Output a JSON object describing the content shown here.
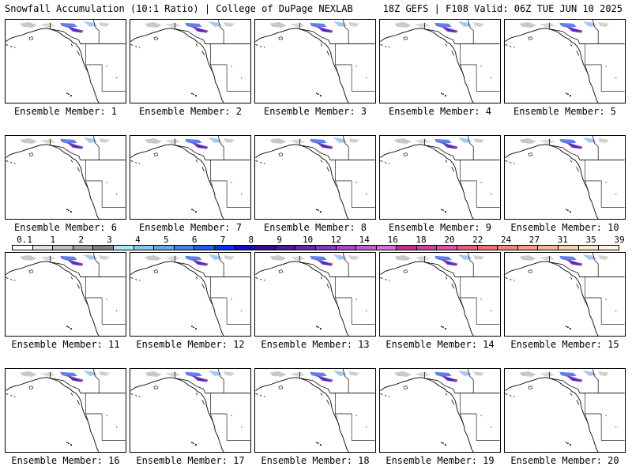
{
  "header": {
    "left": "Snowfall Accumulation (10:1 Ratio) | College of DuPage NEXLAB",
    "right": "18Z GEFS | F108 Valid: 06Z TUE JUN 10 2025"
  },
  "panels": [
    {
      "label": "Ensemble Member: 1"
    },
    {
      "label": "Ensemble Member: 2"
    },
    {
      "label": "Ensemble Member: 3"
    },
    {
      "label": "Ensemble Member: 4"
    },
    {
      "label": "Ensemble Member: 5"
    },
    {
      "label": "Ensemble Member: 6"
    },
    {
      "label": "Ensemble Member: 7"
    },
    {
      "label": "Ensemble Member: 8"
    },
    {
      "label": "Ensemble Member: 9"
    },
    {
      "label": "Ensemble Member: 10"
    },
    {
      "label": "Ensemble Member: 11"
    },
    {
      "label": "Ensemble Member: 12"
    },
    {
      "label": "Ensemble Member: 13"
    },
    {
      "label": "Ensemble Member: 14"
    },
    {
      "label": "Ensemble Member: 15"
    },
    {
      "label": "Ensemble Member: 16"
    },
    {
      "label": "Ensemble Member: 17"
    },
    {
      "label": "Ensemble Member: 18"
    },
    {
      "label": "Ensemble Member: 19"
    },
    {
      "label": "Ensemble Member: 20"
    }
  ],
  "colorbar": {
    "ticks": [
      "0.1",
      "1",
      "2",
      "3",
      "4",
      "5",
      "6",
      "7",
      "8",
      "9",
      "10",
      "12",
      "14",
      "16",
      "18",
      "20",
      "22",
      "24",
      "27",
      "31",
      "35",
      "39"
    ],
    "colors": [
      "#ffffff",
      "#e0e0e0",
      "#c0c0c0",
      "#a0a0a0",
      "#808080",
      "#a8e8f8",
      "#88c8f0",
      "#68a8e8",
      "#4880e8",
      "#2858e8",
      "#0830f0",
      "#1010c0",
      "#301090",
      "#501898",
      "#6828a8",
      "#8838b8",
      "#a848c8",
      "#c060d0",
      "#d070d8",
      "#c03090",
      "#d04098",
      "#e050a8",
      "#e86080",
      "#f07070",
      "#f08878",
      "#f4a080",
      "#f8b890",
      "#fcd0a8",
      "#fde8cc",
      "#fff4e4"
    ]
  }
}
